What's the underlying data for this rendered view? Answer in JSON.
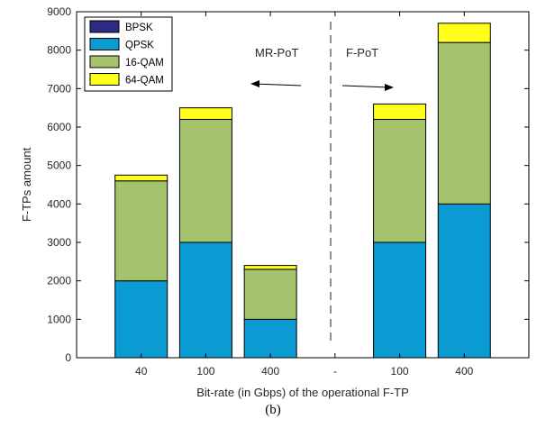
{
  "chart_data": {
    "type": "bar",
    "stacked": true,
    "xlabel": "Bit-rate (in Gbps) of the operational F-TP",
    "ylabel": "F-TPs amount",
    "ylim": [
      0,
      9000
    ],
    "yticks": [
      0,
      1000,
      2000,
      3000,
      4000,
      5000,
      6000,
      7000,
      8000,
      9000
    ],
    "categories": [
      "40",
      "100",
      "400",
      "-",
      "100",
      "400"
    ],
    "series": [
      {
        "name": "BPSK",
        "color": "#2e2b84",
        "values": [
          0,
          0,
          0,
          0,
          0,
          0
        ]
      },
      {
        "name": "QPSK",
        "color": "#0a9bd2",
        "values": [
          2000,
          3000,
          1000,
          0,
          3000,
          4000
        ]
      },
      {
        "name": "16-QAM",
        "color": "#a5c26d",
        "values": [
          2600,
          3200,
          1300,
          0,
          3200,
          4200
        ]
      },
      {
        "name": "64-QAM",
        "color": "#ffff1a",
        "values": [
          150,
          300,
          100,
          0,
          400,
          500
        ]
      }
    ],
    "legend": "top-left",
    "grid": false,
    "annotations": {
      "left_label": "MR-PoT",
      "right_label": "F-PoT"
    }
  },
  "caption": "(b)"
}
